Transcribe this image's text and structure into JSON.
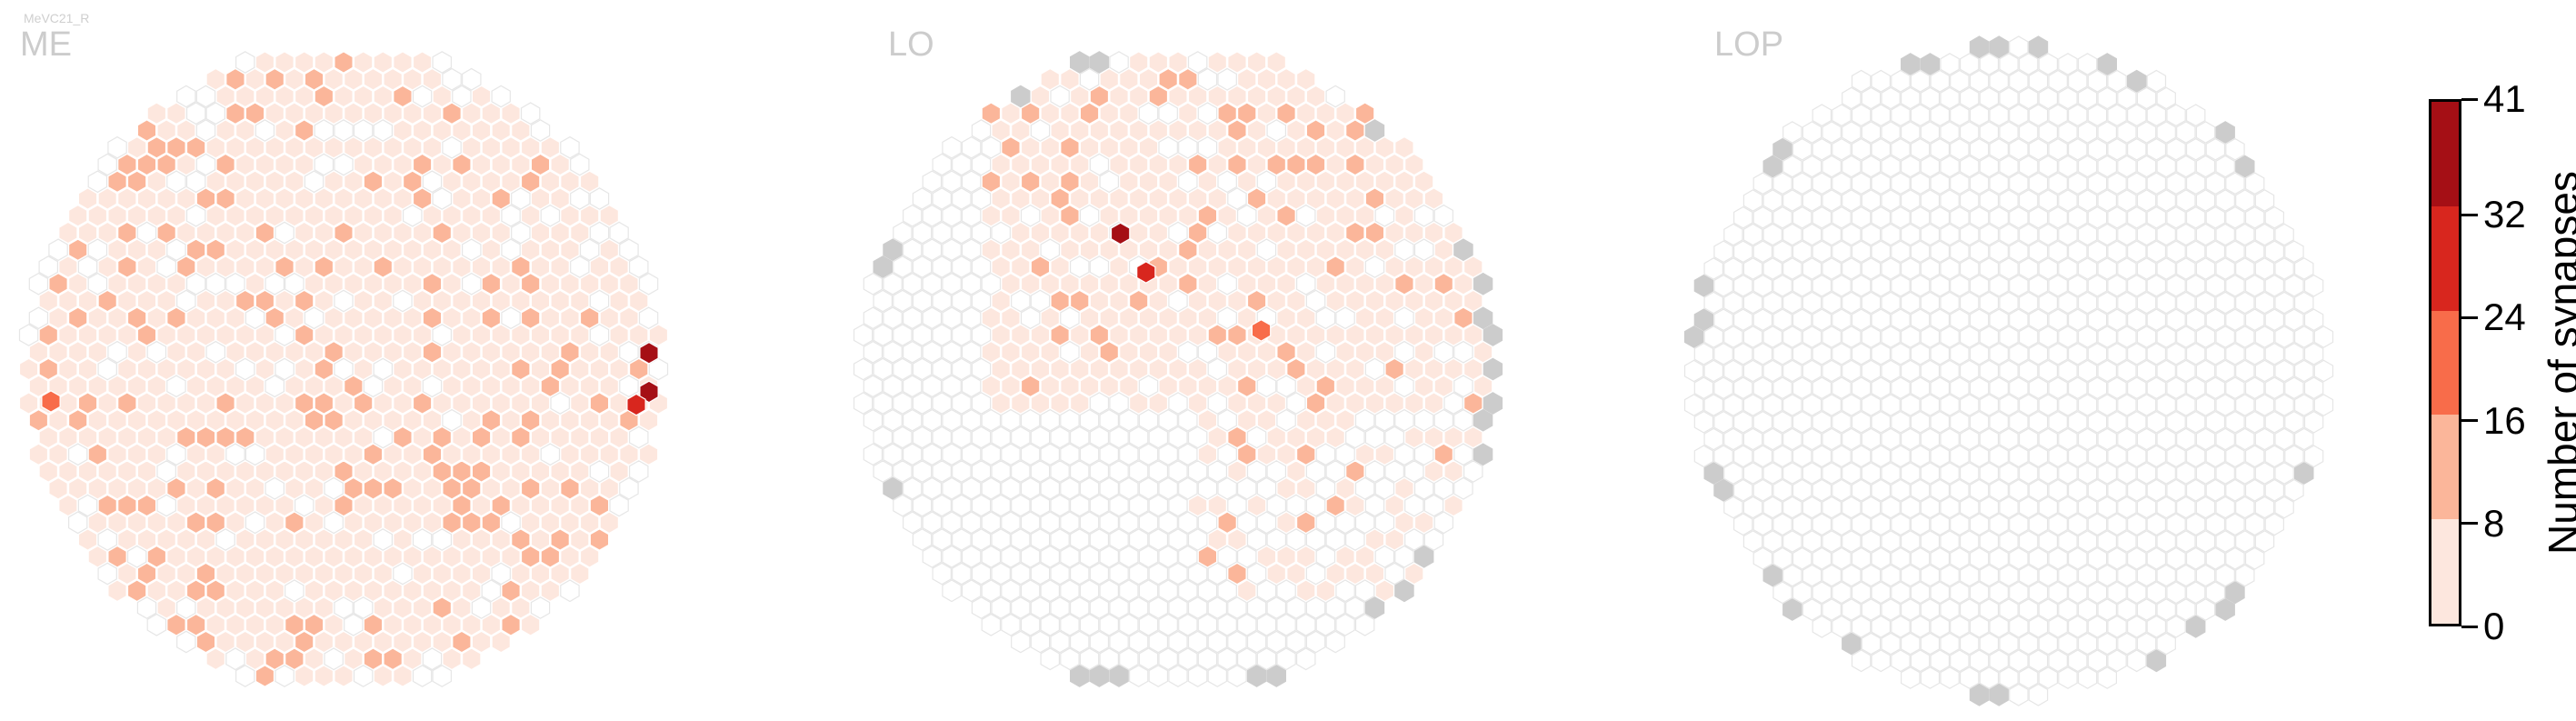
{
  "figure": {
    "caption": "MeVC21_R",
    "panels": [
      "ME",
      "LO",
      "LOP"
    ]
  },
  "colorbar": {
    "label": "Number of synapses",
    "ticks": [
      "0",
      "8",
      "16",
      "24",
      "32",
      "41"
    ],
    "tick_values": [
      0,
      8,
      16,
      24,
      32,
      41
    ],
    "colors": [
      "#fde7de",
      "#fbb69a",
      "#f86c4a",
      "#d8261e",
      "#a50f15"
    ]
  },
  "chart_data": [
    {
      "type": "heatmap",
      "title": "ME",
      "description": "hexagonal eye map; every column carries synapses, mostly 1-8, with scattered 8-16 columns and a few higher on the right edge",
      "max_value": 41,
      "hotspots": [
        {
          "value": 41,
          "note": "right edge"
        },
        {
          "value": 34,
          "note": "right edge"
        },
        {
          "value": 26,
          "note": "right edge"
        },
        {
          "value": 20,
          "note": "left edge"
        }
      ],
      "colors": {
        "fill_low": "#fde7de",
        "outline_empty": "#e4e4e4"
      }
    },
    {
      "type": "heatmap",
      "title": "LO",
      "description": "upper-center band of columns with synapses (1-8), cluster of 16-32 near top center; lower-left region empty; grey cells on the rim",
      "max_value": 35,
      "hotspots": [
        {
          "value": 35,
          "note": "upper center"
        },
        {
          "value": 28,
          "note": "upper center"
        },
        {
          "value": 24,
          "note": "right"
        }
      ],
      "colors": {
        "fill_low": "#fde7de",
        "outline_empty": "#e4e4e4",
        "rim_grey": "#cccccc"
      }
    },
    {
      "type": "heatmap",
      "title": "LOP",
      "description": "no synapses in any column; only empty outlines with a rim of grey cells",
      "max_value": 0,
      "hotspots": [],
      "colors": {
        "outline_empty": "#e4e4e4",
        "rim_grey": "#cccccc"
      }
    }
  ]
}
